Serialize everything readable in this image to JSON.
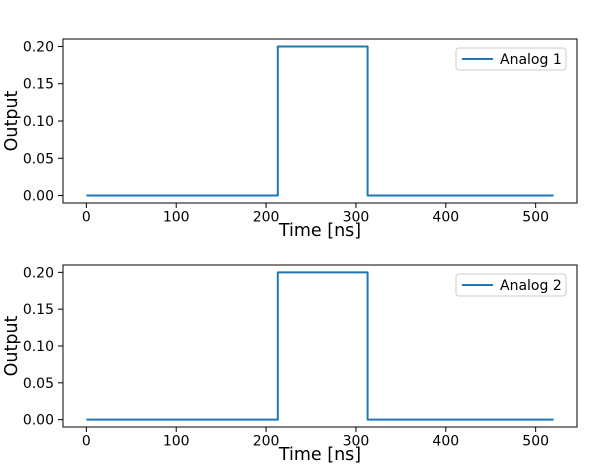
{
  "figure": {
    "background": "#ffffff",
    "text_color": "#000000",
    "spine_color": "#000000",
    "legend_edge_color": "#cccccc",
    "legend_face_color": "#ffffff"
  },
  "chart_data": [
    {
      "type": "line",
      "title": "",
      "xlabel": "Time [ns]",
      "ylabel": "Output",
      "xlim": [
        -26,
        546
      ],
      "ylim": [
        -0.01,
        0.21
      ],
      "grid": false,
      "xticks": [
        0,
        100,
        200,
        300,
        400,
        500
      ],
      "xtick_labels": [
        "0",
        "100",
        "200",
        "300",
        "400",
        "500"
      ],
      "yticks": [
        0.0,
        0.05,
        0.1,
        0.15,
        0.2
      ],
      "ytick_labels": [
        "0.00",
        "0.05",
        "0.10",
        "0.15",
        "0.20"
      ],
      "legend": {
        "position": "upper right",
        "labels": [
          "Analog 1"
        ]
      },
      "series": [
        {
          "name": "Analog 1",
          "color": "#1f77b4",
          "x": [
            0,
            213,
            213,
            313,
            313,
            520
          ],
          "y": [
            0.0,
            0.0,
            0.2,
            0.2,
            0.0,
            0.0
          ]
        }
      ]
    },
    {
      "type": "line",
      "title": "",
      "xlabel": "Time [ns]",
      "ylabel": "Output",
      "xlim": [
        -26,
        546
      ],
      "ylim": [
        -0.01,
        0.21
      ],
      "grid": false,
      "xticks": [
        0,
        100,
        200,
        300,
        400,
        500
      ],
      "xtick_labels": [
        "0",
        "100",
        "200",
        "300",
        "400",
        "500"
      ],
      "yticks": [
        0.0,
        0.05,
        0.1,
        0.15,
        0.2
      ],
      "ytick_labels": [
        "0.00",
        "0.05",
        "0.10",
        "0.15",
        "0.20"
      ],
      "legend": {
        "position": "upper right",
        "labels": [
          "Analog 2"
        ]
      },
      "series": [
        {
          "name": "Analog 2",
          "color": "#1f77b4",
          "x": [
            0,
            213,
            213,
            313,
            313,
            520
          ],
          "y": [
            0.0,
            0.0,
            0.2,
            0.2,
            0.0,
            0.0
          ]
        }
      ]
    }
  ]
}
